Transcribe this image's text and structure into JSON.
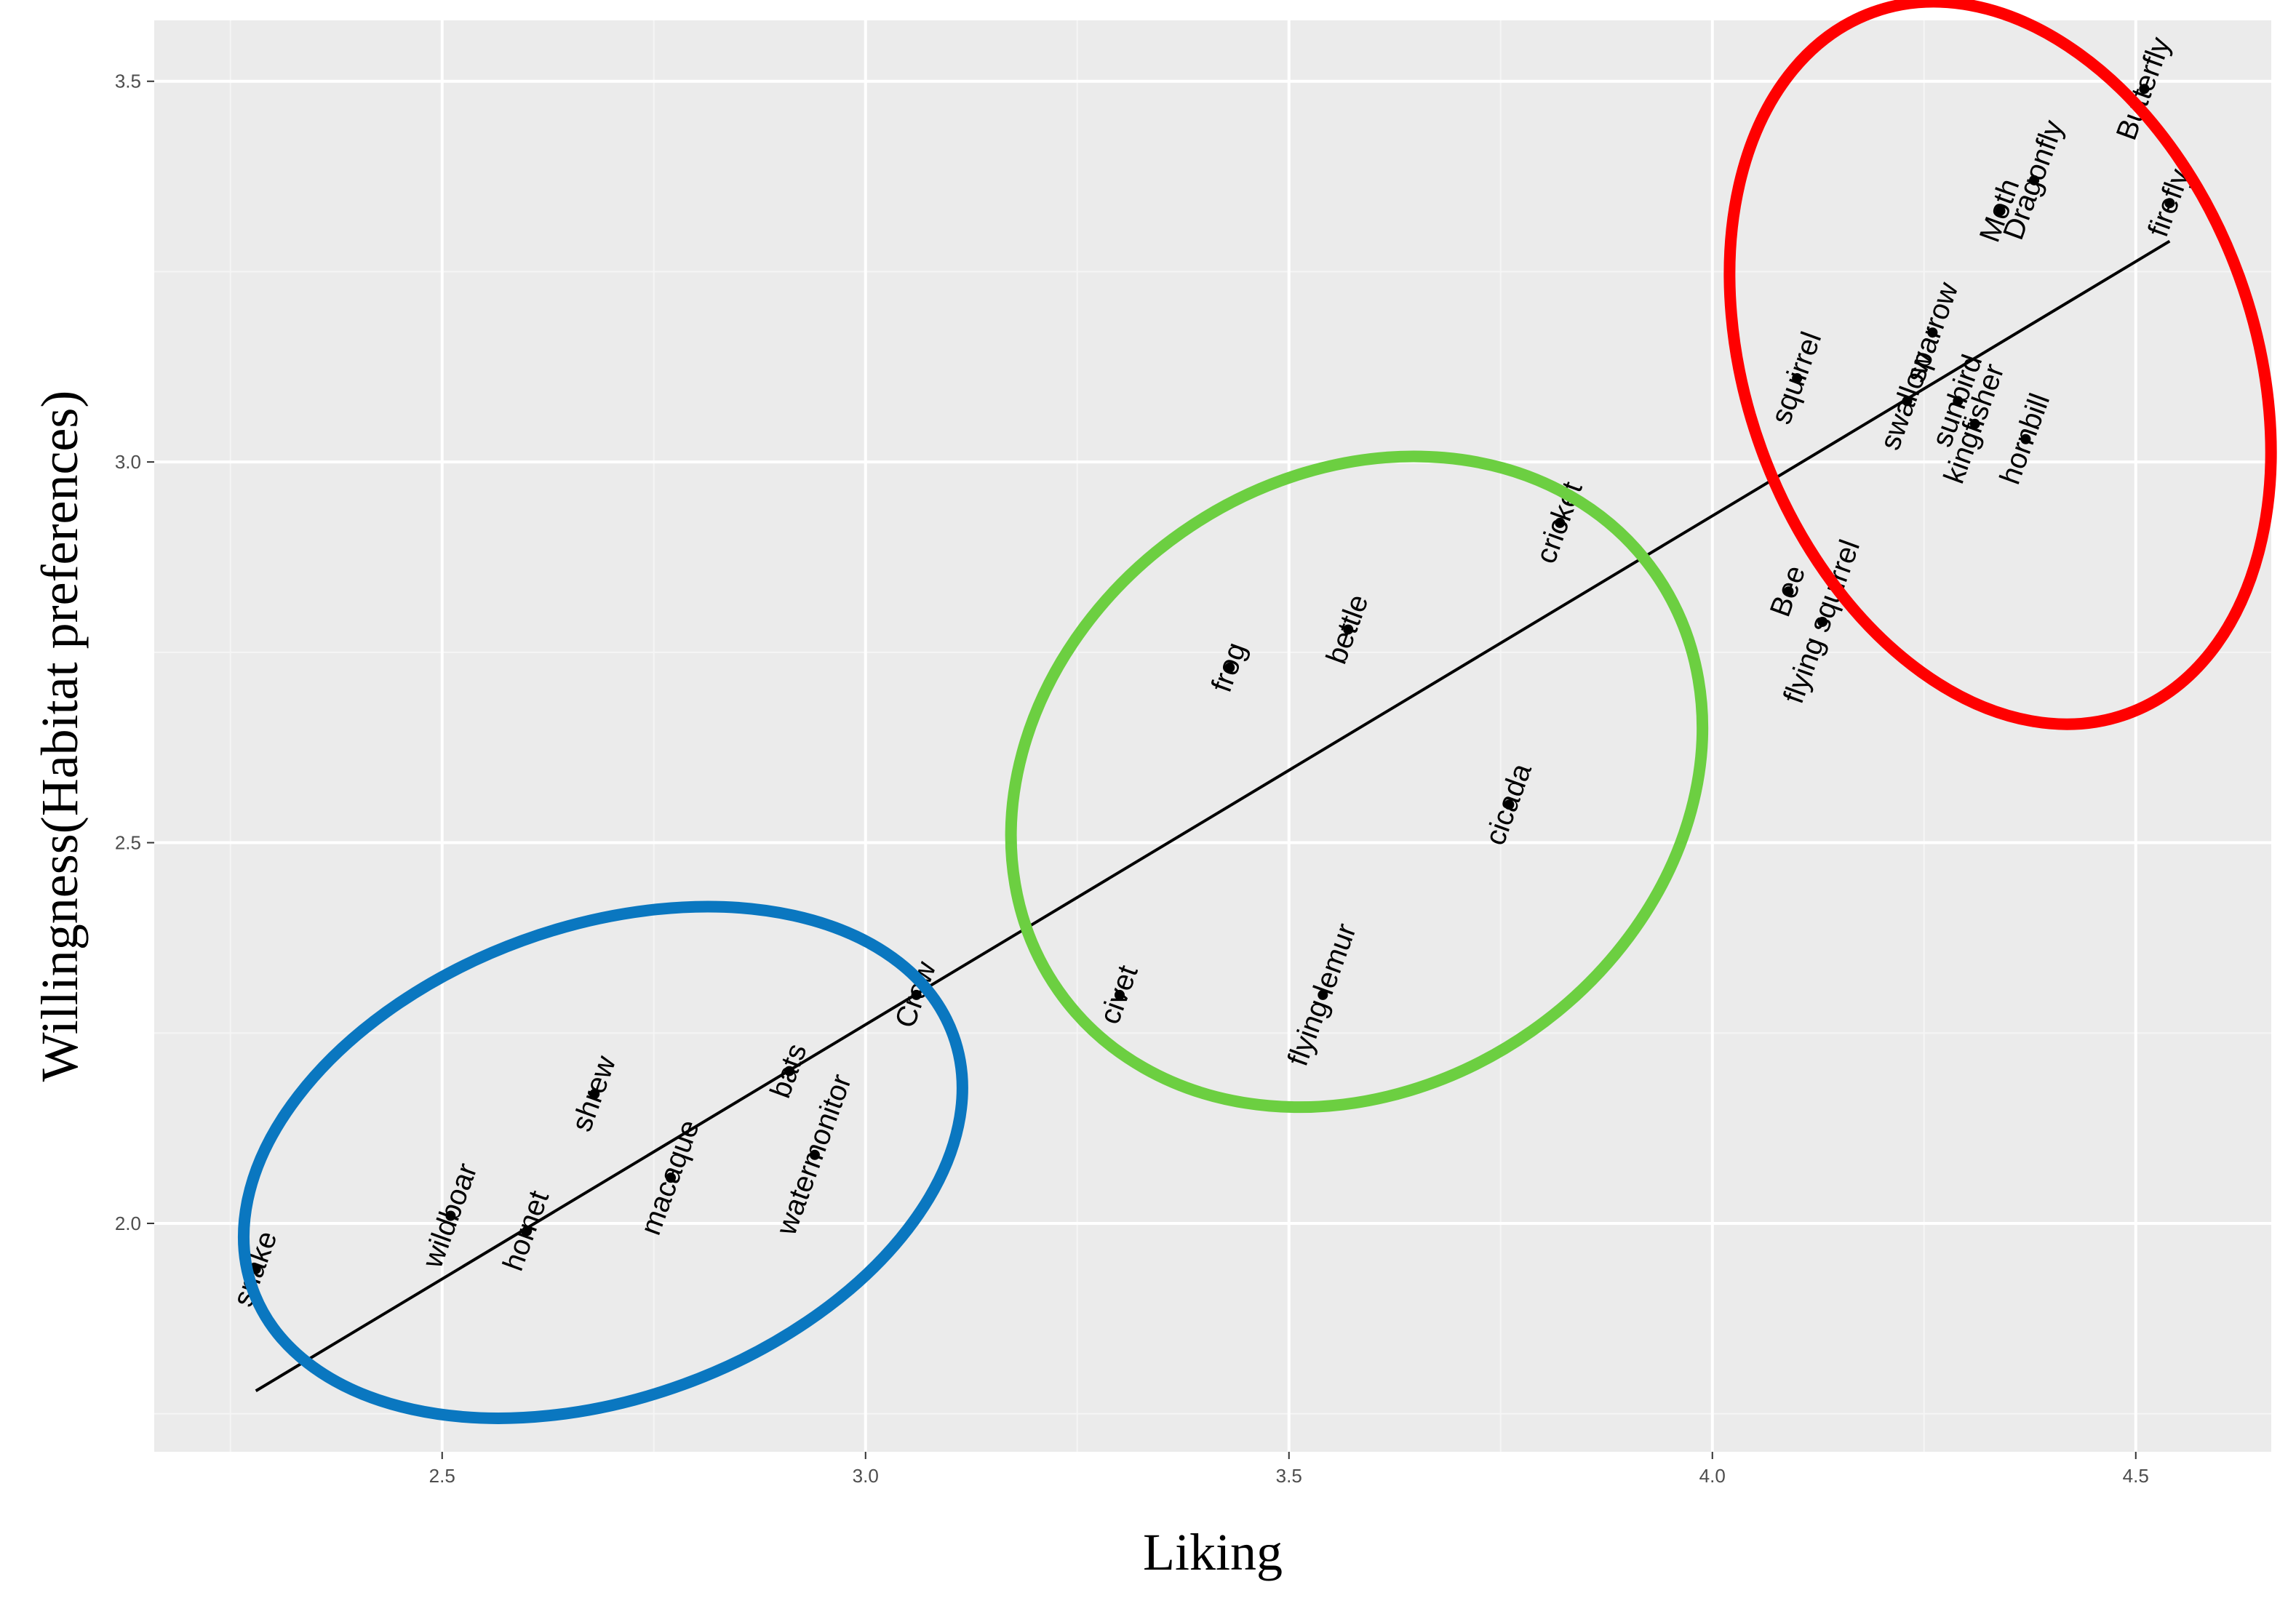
{
  "chart_data": {
    "type": "scatter",
    "title": "",
    "xlabel": "Liking",
    "ylabel": "Willingness(Habitat  preferences)",
    "xlim": [
      2.16,
      4.66
    ],
    "ylim": [
      1.7,
      3.58
    ],
    "x_ticks": [
      {
        "value": 2.5,
        "label": "2.5"
      },
      {
        "value": 3.0,
        "label": "3.0"
      },
      {
        "value": 3.5,
        "label": "3.5"
      },
      {
        "value": 4.0,
        "label": "4.0"
      },
      {
        "value": 4.5,
        "label": "4.5"
      }
    ],
    "y_ticks": [
      {
        "value": 2.0,
        "label": "2.0"
      },
      {
        "value": 2.5,
        "label": "2.5"
      },
      {
        "value": 3.0,
        "label": "3.0"
      },
      {
        "value": 3.5,
        "label": "3.5"
      }
    ],
    "grid": true,
    "background": "#ebebeb",
    "points": [
      {
        "label": "snake",
        "x": 2.28,
        "y": 1.94
      },
      {
        "label": "wildboar",
        "x": 2.51,
        "y": 2.01
      },
      {
        "label": "hornet",
        "x": 2.6,
        "y": 1.99
      },
      {
        "label": "shrew",
        "x": 2.68,
        "y": 2.17
      },
      {
        "label": "macaque",
        "x": 2.77,
        "y": 2.06
      },
      {
        "label": "bats",
        "x": 2.91,
        "y": 2.2
      },
      {
        "label": "watermonitor",
        "x": 2.94,
        "y": 2.09
      },
      {
        "label": "Crow",
        "x": 3.06,
        "y": 2.3
      },
      {
        "label": "civet",
        "x": 3.3,
        "y": 2.3
      },
      {
        "label": "frog",
        "x": 3.43,
        "y": 2.73
      },
      {
        "label": "flying lemur",
        "x": 3.54,
        "y": 2.3
      },
      {
        "label": "bettle",
        "x": 3.57,
        "y": 2.78
      },
      {
        "label": "cicada",
        "x": 3.76,
        "y": 2.55
      },
      {
        "label": "cricket",
        "x": 3.82,
        "y": 2.92
      },
      {
        "label": "squirrel",
        "x": 4.1,
        "y": 3.11
      },
      {
        "label": "Bee",
        "x": 4.09,
        "y": 2.83
      },
      {
        "label": "flying squirrel",
        "x": 4.13,
        "y": 2.79
      },
      {
        "label": "swallow",
        "x": 4.23,
        "y": 3.08
      },
      {
        "label": "sparrow",
        "x": 4.26,
        "y": 3.17
      },
      {
        "label": "sunbird",
        "x": 4.29,
        "y": 3.08
      },
      {
        "label": "kingfisher",
        "x": 4.31,
        "y": 3.05
      },
      {
        "label": "hornbill",
        "x": 4.37,
        "y": 3.03
      },
      {
        "label": "Moth",
        "x": 4.34,
        "y": 3.33
      },
      {
        "label": "Dragonfly",
        "x": 4.38,
        "y": 3.37
      },
      {
        "label": "Butterfly",
        "x": 4.51,
        "y": 3.49
      },
      {
        "label": "firefly",
        "x": 4.54,
        "y": 3.34
      }
    ],
    "trend_line": {
      "x": [
        2.28,
        4.54
      ],
      "y": [
        1.78,
        3.29
      ],
      "color": "#000000"
    },
    "groups": [
      {
        "cx": 2.69,
        "cy": 2.08,
        "rx": 0.44,
        "ry": 0.31,
        "angle_deg": 20,
        "color": "#0a77c0"
      },
      {
        "cx": 3.58,
        "cy": 2.58,
        "rx": 0.43,
        "ry": 0.4,
        "angle_deg": 35,
        "color": "#6ccf41"
      },
      {
        "cx": 4.34,
        "cy": 3.13,
        "rx": 0.3,
        "ry": 0.49,
        "angle_deg": 20,
        "color": "#ff0000"
      }
    ]
  }
}
